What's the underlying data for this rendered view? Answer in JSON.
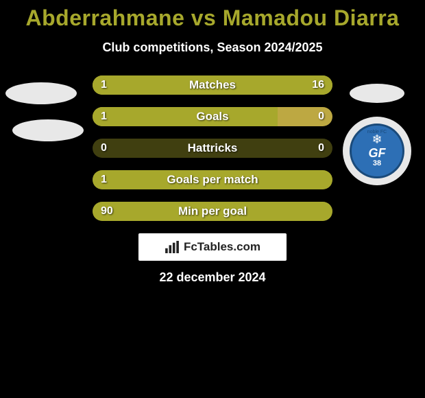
{
  "title": "Abderrahmane vs Mamadou Diarra",
  "title_color": "#a7a82c",
  "subtitle": "Club competitions, Season 2024/2025",
  "colors": {
    "bar_fill": "#a7a82c",
    "bar_empty": "#403f10",
    "bar_empty_alt": "#bda842",
    "background": "#000000",
    "text": "#ffffff"
  },
  "bars": [
    {
      "label": "Matches",
      "left_value": "1",
      "right_value": "16",
      "left_pct": 6,
      "right_pct": 94,
      "left_color": "#a7a82c",
      "right_color": "#a7a82c",
      "track_color": "#a7a82c"
    },
    {
      "label": "Goals",
      "left_value": "1",
      "right_value": "0",
      "left_pct": 77,
      "right_pct": 0,
      "left_color": "#a7a82c",
      "right_color": "#bda842",
      "track_color": "#bda842"
    },
    {
      "label": "Hattricks",
      "left_value": "0",
      "right_value": "0",
      "left_pct": 0,
      "right_pct": 0,
      "left_color": "#a7a82c",
      "right_color": "#a7a82c",
      "track_color": "#403f10"
    },
    {
      "label": "Goals per match",
      "left_value": "1",
      "right_value": "",
      "left_pct": 100,
      "right_pct": 0,
      "left_color": "#a7a82c",
      "right_color": "#a7a82c",
      "track_color": "#403f10"
    },
    {
      "label": "Min per goal",
      "left_value": "90",
      "right_value": "",
      "left_pct": 100,
      "right_pct": 0,
      "left_color": "#a7a82c",
      "right_color": "#a7a82c",
      "track_color": "#403f10"
    }
  ],
  "brand": "FcTables.com",
  "date": "22 december 2024",
  "club_badge": {
    "top_text": "noble FC",
    "main": "GF",
    "sub": "38"
  }
}
